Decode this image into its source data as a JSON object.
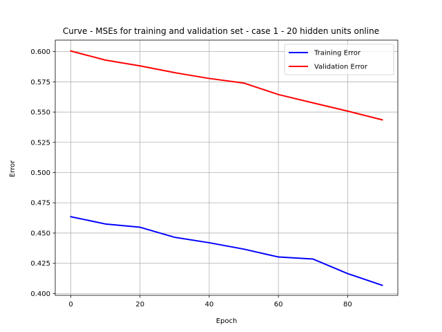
{
  "chart_data": {
    "type": "line",
    "title": "Curve - MSEs for training and validation set - case 1 - 20 hidden units online",
    "xlabel": "Epoch",
    "ylabel": "Error",
    "xlim": [
      -4.5,
      94.5
    ],
    "ylim": [
      0.3985,
      0.6095
    ],
    "xticks": [
      0,
      20,
      40,
      60,
      80
    ],
    "xtick_labels": [
      "0",
      "20",
      "40",
      "60",
      "80"
    ],
    "yticks": [
      0.4,
      0.425,
      0.45,
      0.475,
      0.5,
      0.525,
      0.55,
      0.575,
      0.6
    ],
    "ytick_labels": [
      "0.400",
      "0.425",
      "0.450",
      "0.475",
      "0.500",
      "0.525",
      "0.550",
      "0.575",
      "0.600"
    ],
    "grid": true,
    "legend_position": "top-right",
    "x": [
      0,
      10,
      20,
      30,
      40,
      50,
      60,
      70,
      80,
      90
    ],
    "series": [
      {
        "name": "Training Error",
        "color": "#0000ff",
        "values": [
          0.4635,
          0.4575,
          0.4548,
          0.4465,
          0.442,
          0.4367,
          0.4302,
          0.4285,
          0.4165,
          0.4068
        ]
      },
      {
        "name": "Validation Error",
        "color": "#ff0000",
        "values": [
          0.6005,
          0.593,
          0.5882,
          0.5826,
          0.5778,
          0.574,
          0.5645,
          0.5576,
          0.5508,
          0.5436
        ]
      }
    ]
  }
}
